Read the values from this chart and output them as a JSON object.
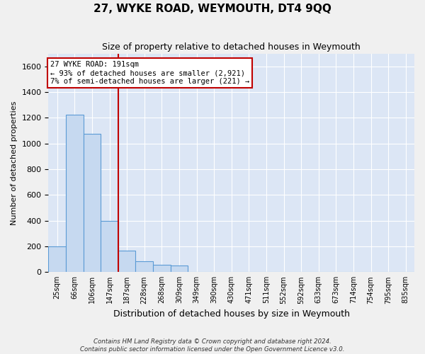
{
  "title": "27, WYKE ROAD, WEYMOUTH, DT4 9QQ",
  "subtitle": "Size of property relative to detached houses in Weymouth",
  "xlabel": "Distribution of detached houses by size in Weymouth",
  "ylabel": "Number of detached properties",
  "bin_labels": [
    "25sqm",
    "66sqm",
    "106sqm",
    "147sqm",
    "187sqm",
    "228sqm",
    "268sqm",
    "309sqm",
    "349sqm",
    "390sqm",
    "430sqm",
    "471sqm",
    "511sqm",
    "552sqm",
    "592sqm",
    "633sqm",
    "673sqm",
    "714sqm",
    "754sqm",
    "795sqm",
    "835sqm"
  ],
  "bar_values": [
    200,
    1225,
    1075,
    400,
    165,
    85,
    55,
    50,
    0,
    0,
    0,
    0,
    0,
    0,
    0,
    0,
    0,
    0,
    0,
    0,
    0
  ],
  "bar_color": "#c6d9f0",
  "bar_edge_color": "#5b9bd5",
  "property_line_color": "#c00000",
  "property_line_x": 3.5,
  "annotation_text": "27 WYKE ROAD: 191sqm\n← 93% of detached houses are smaller (2,921)\n7% of semi-detached houses are larger (221) →",
  "annotation_box_color": "#ffffff",
  "annotation_box_edge_color": "#c00000",
  "ylim": [
    0,
    1700
  ],
  "yticks": [
    0,
    200,
    400,
    600,
    800,
    1000,
    1200,
    1400,
    1600
  ],
  "footer_line1": "Contains HM Land Registry data © Crown copyright and database right 2024.",
  "footer_line2": "Contains public sector information licensed under the Open Government Licence v3.0.",
  "background_color": "#dce6f5",
  "grid_color": "#ffffff",
  "fig_bg_color": "#f0f0f0",
  "figsize": [
    6.0,
    5.0
  ],
  "dpi": 100
}
